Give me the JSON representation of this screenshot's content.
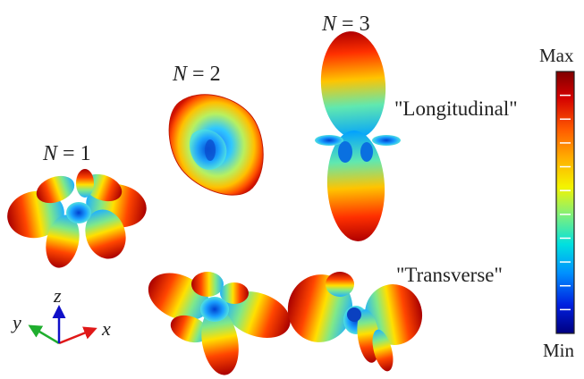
{
  "panels": {
    "n1": {
      "var": "N",
      "eq": " = ",
      "num": "1"
    },
    "n2": {
      "var": "N",
      "eq": " = ",
      "num": "2"
    },
    "n3": {
      "var": "N",
      "eq": " = ",
      "num": "3"
    }
  },
  "modes": {
    "longitudinal": "\"Longitudinal\"",
    "transverse": "\"Transverse\""
  },
  "colorbar": {
    "max_label": "Max",
    "min_label": "Min",
    "colormap": [
      "#7f0000",
      "#d40000",
      "#ff5a00",
      "#ffae00",
      "#f4f400",
      "#7df07d",
      "#00e0e0",
      "#0090ff",
      "#0020e0",
      "#00007f"
    ]
  },
  "axes": {
    "x": "x",
    "y": "y",
    "z": "z",
    "colors": {
      "x": "#e01818",
      "y": "#1fae2e",
      "z": "#1010c8"
    }
  }
}
